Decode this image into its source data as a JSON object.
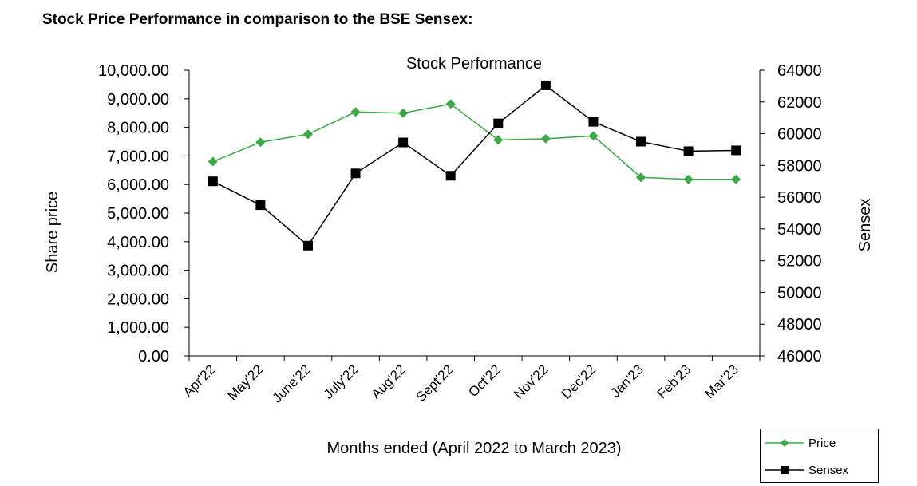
{
  "heading": "Stock Price Performance in comparison to the BSE Sensex:",
  "colors": {
    "price": "#3aa845",
    "sensex": "#000000"
  },
  "chart_data": {
    "type": "line",
    "title": "Stock Performance",
    "xlabel": "Months ended (April 2022 to March 2023)",
    "ylabel": "Share price",
    "y2label": "Sensex",
    "categories": [
      "Apr'22",
      "May'22",
      "June'22",
      "July'22",
      "Aug'22",
      "Sept'22",
      "Oct'22",
      "Nov'22",
      "Dec'22",
      "Jan'23",
      "Feb'23",
      "Mar'23"
    ],
    "ylim": [
      0,
      10000
    ],
    "yticks": [
      "0.00",
      "1,000.00",
      "2,000.00",
      "3,000.00",
      "4,000.00",
      "5,000.00",
      "6,000.00",
      "7,000.00",
      "8,000.00",
      "9,000.00",
      "10,000.00"
    ],
    "y2lim": [
      46000,
      64000
    ],
    "y2ticks": [
      "46000",
      "48000",
      "50000",
      "52000",
      "54000",
      "56000",
      "58000",
      "60000",
      "62000",
      "64000"
    ],
    "grid": false,
    "legend_position": "bottom-right",
    "series": [
      {
        "name": "Price",
        "axis": "left",
        "marker": "diamond",
        "values": [
          6800,
          7480,
          7760,
          8540,
          8500,
          8820,
          7560,
          7600,
          7700,
          6250,
          6180,
          6180
        ]
      },
      {
        "name": "Sensex",
        "axis": "right",
        "marker": "square",
        "values": [
          57000,
          55500,
          52950,
          57500,
          59450,
          57350,
          60650,
          63050,
          60750,
          59500,
          58900,
          58950
        ]
      }
    ]
  }
}
